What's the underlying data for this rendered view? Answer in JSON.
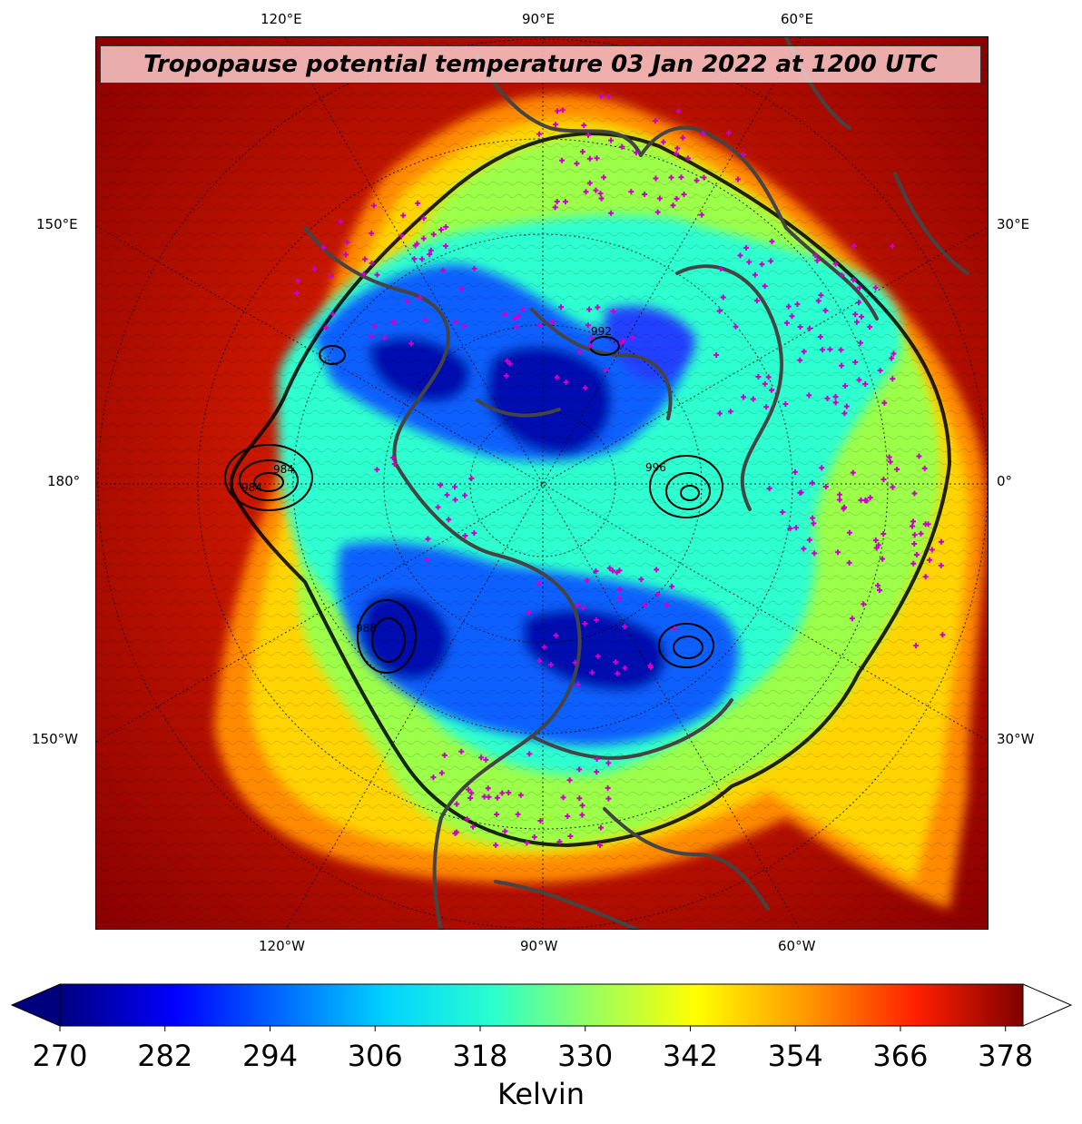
{
  "title": "Tropopause potential temperature 03 Jan 2022 at 1200 UTC",
  "top_labels": [
    "120°E",
    "90°E",
    "60°E"
  ],
  "bottom_labels": [
    "120°W",
    "90°W",
    "60°W"
  ],
  "left_labels": [
    "150°E",
    "180°",
    "150°W"
  ],
  "right_labels": [
    "30°E",
    "0°",
    "30°W"
  ],
  "colorbar": {
    "label": "Kelvin",
    "min": 270,
    "max": 380,
    "ticks": [
      "270",
      "282",
      "294",
      "306",
      "318",
      "330",
      "342",
      "354",
      "366",
      "378"
    ],
    "extend": "both"
  },
  "contour_labels": [
    "984",
    "984",
    "992",
    "996",
    "988"
  ],
  "colors": {
    "station_marker": "#cc00cc",
    "coastline": "#444444",
    "cold_core": "#0000aa",
    "warm_edge": "#8b0000"
  }
}
